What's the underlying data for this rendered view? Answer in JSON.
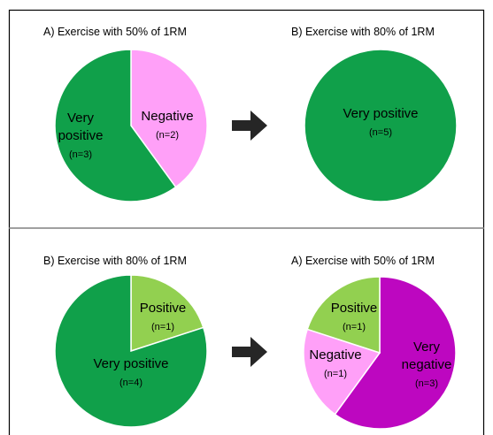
{
  "chart_data": [
    {
      "type": "pie",
      "title": "A) Exercise with 50% of 1RM",
      "slices": [
        {
          "label": "Negative",
          "count_label": "(n=2)",
          "value": 2,
          "color": "#ffa0f8"
        },
        {
          "label": "Very positive",
          "count_label": "(n=3)",
          "value": 3,
          "color": "#10a04a"
        }
      ]
    },
    {
      "type": "pie",
      "title": "B) Exercise with 80% of 1RM",
      "slices": [
        {
          "label": "Very positive",
          "count_label": "(n=5)",
          "value": 5,
          "color": "#10a04a"
        }
      ]
    },
    {
      "type": "pie",
      "title": "B) Exercise with 80% of 1RM",
      "slices": [
        {
          "label": "Positive",
          "count_label": "(n=1)",
          "value": 1,
          "color": "#92d050"
        },
        {
          "label": "Very positive",
          "count_label": "(n=4)",
          "value": 4,
          "color": "#10a04a"
        }
      ]
    },
    {
      "type": "pie",
      "title": "A) Exercise with 50% of 1RM",
      "slices": [
        {
          "label": "Very negative",
          "count_label": "(n=3)",
          "value": 3,
          "color": "#bd07c0"
        },
        {
          "label": "Negative",
          "count_label": "(n=1)",
          "value": 1,
          "color": "#ffa0f8"
        },
        {
          "label": "Positive",
          "count_label": "(n=1)",
          "value": 1,
          "color": "#92d050"
        }
      ]
    }
  ],
  "colors": {
    "border": "#000000",
    "divider": "#808080",
    "arrow": "#262626",
    "slice_outline": "#ffffff"
  },
  "icons": [
    "arrow-right-icon",
    "arrow-right-icon"
  ]
}
